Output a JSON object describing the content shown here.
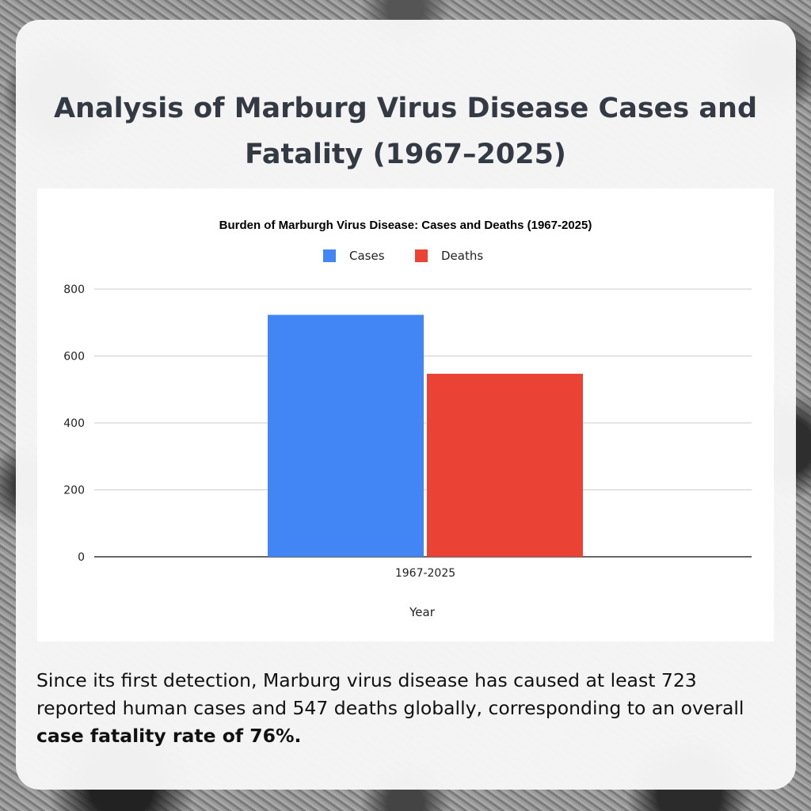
{
  "header": {
    "title": "Analysis of Marburg Virus Disease Cases and Fatality (1967–2025)"
  },
  "chart_data": {
    "type": "bar",
    "title": "Burden of Marburgh Virus Disease: Cases and Deaths (1967-2025)",
    "categories": [
      "1967-2025"
    ],
    "series": [
      {
        "name": "Cases",
        "values": [
          723
        ],
        "color": "#4285f4"
      },
      {
        "name": "Deaths",
        "values": [
          547
        ],
        "color": "#ea4335"
      }
    ],
    "xlabel": "Year",
    "ylabel": "",
    "ylim": [
      0,
      800
    ],
    "yticks": [
      "0",
      "200",
      "400",
      "600",
      "800"
    ],
    "legend": "top-center",
    "grid": true
  },
  "description": {
    "text": "Since its first detection, Marburg virus disease has caused at least 723 reported human cases and 547 deaths globally, corresponding to an overall ",
    "bold": "case fatality rate of 76%."
  }
}
